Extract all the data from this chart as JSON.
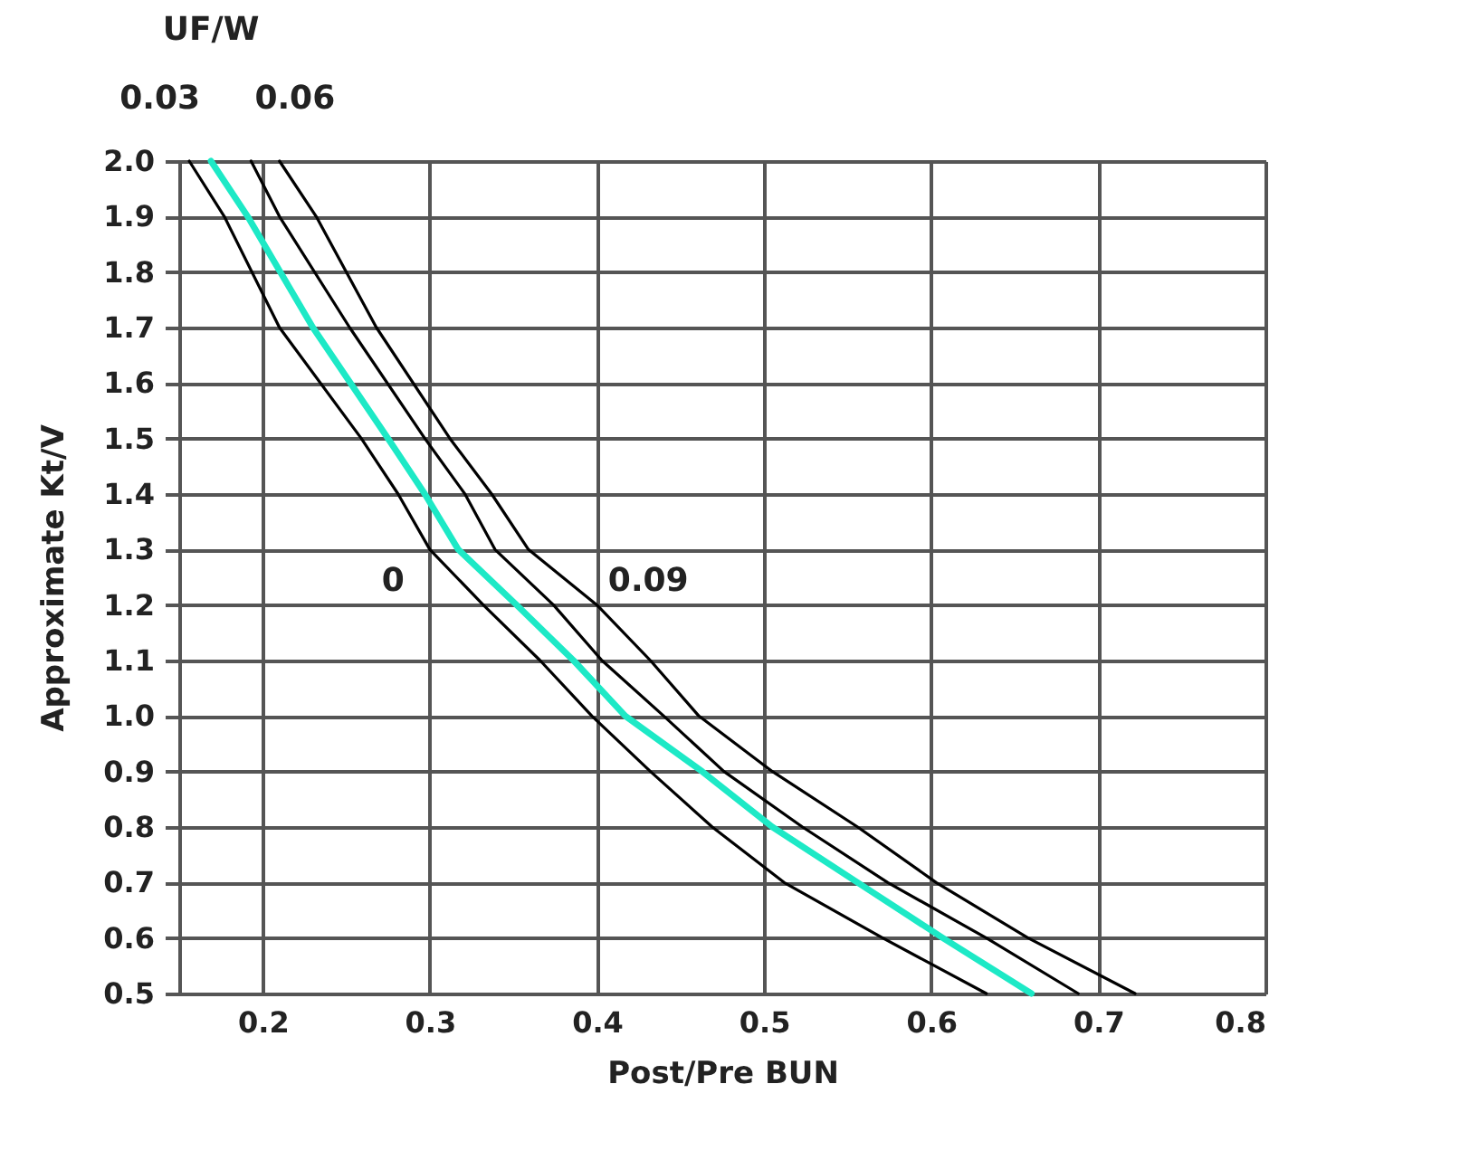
{
  "chart_data": {
    "type": "line",
    "xlabel": "Post/Pre BUN",
    "ylabel": "Approximate Kt/V",
    "xlim": [
      0.15,
      0.8
    ],
    "xticks": [
      0.2,
      0.3,
      0.4,
      0.5,
      0.6,
      0.7,
      0.8
    ],
    "ylim": [
      0.5,
      2.0
    ],
    "yticks": [
      0.5,
      0.6,
      0.7,
      0.8,
      0.9,
      {
        "value": 1.0,
        "label": "1.0"
      },
      1.1,
      1.2,
      1.3,
      1.4,
      1.5,
      1.6,
      1.7,
      1.8,
      1.9,
      {
        "value": 2.0,
        "label": "2.0"
      }
    ],
    "grid": true,
    "marker": "none",
    "line_style": "solid",
    "series": [
      {
        "name": "0",
        "color": "#000000",
        "x": [
          0.156,
          0.177,
          0.21,
          0.259,
          0.281,
          0.3,
          0.332,
          0.366,
          0.397,
          0.432,
          0.469,
          0.512,
          0.571,
          0.633
        ],
        "values": [
          2.0,
          1.9,
          1.7,
          1.5,
          1.4,
          1.3,
          1.2,
          1.1,
          1.0,
          0.9,
          0.8,
          0.7,
          0.6,
          0.5
        ]
      },
      {
        "name": "0.03",
        "color": "#1de9c6",
        "x": [
          0.169,
          0.191,
          0.23,
          0.275,
          0.297,
          0.317,
          0.352,
          0.386,
          0.417,
          0.463,
          0.505,
          0.556,
          0.607,
          0.66
        ],
        "values": [
          2.0,
          1.9,
          1.7,
          1.5,
          1.4,
          1.3,
          1.2,
          1.1,
          1.0,
          0.9,
          0.8,
          0.7,
          0.6,
          0.5
        ]
      },
      {
        "name": "0.06",
        "color": "#000000",
        "x": [
          0.193,
          0.21,
          0.252,
          0.297,
          0.321,
          0.339,
          0.374,
          0.403,
          0.44,
          0.476,
          0.523,
          0.574,
          0.633,
          0.688
        ],
        "values": [
          2.0,
          1.9,
          1.7,
          1.5,
          1.4,
          1.3,
          1.2,
          1.1,
          1.0,
          0.9,
          0.8,
          0.7,
          0.6,
          0.5
        ]
      },
      {
        "name": "0.09",
        "color": "#000000",
        "x": [
          0.21,
          0.232,
          0.268,
          0.312,
          0.337,
          0.359,
          0.4,
          0.432,
          0.461,
          0.505,
          0.556,
          0.603,
          0.658,
          0.722
        ],
        "values": [
          2.0,
          1.9,
          1.7,
          1.5,
          1.4,
          1.3,
          1.2,
          1.1,
          1.0,
          0.9,
          0.8,
          0.7,
          0.6,
          0.5
        ]
      }
    ],
    "annotations": [
      "UF/W"
    ]
  }
}
